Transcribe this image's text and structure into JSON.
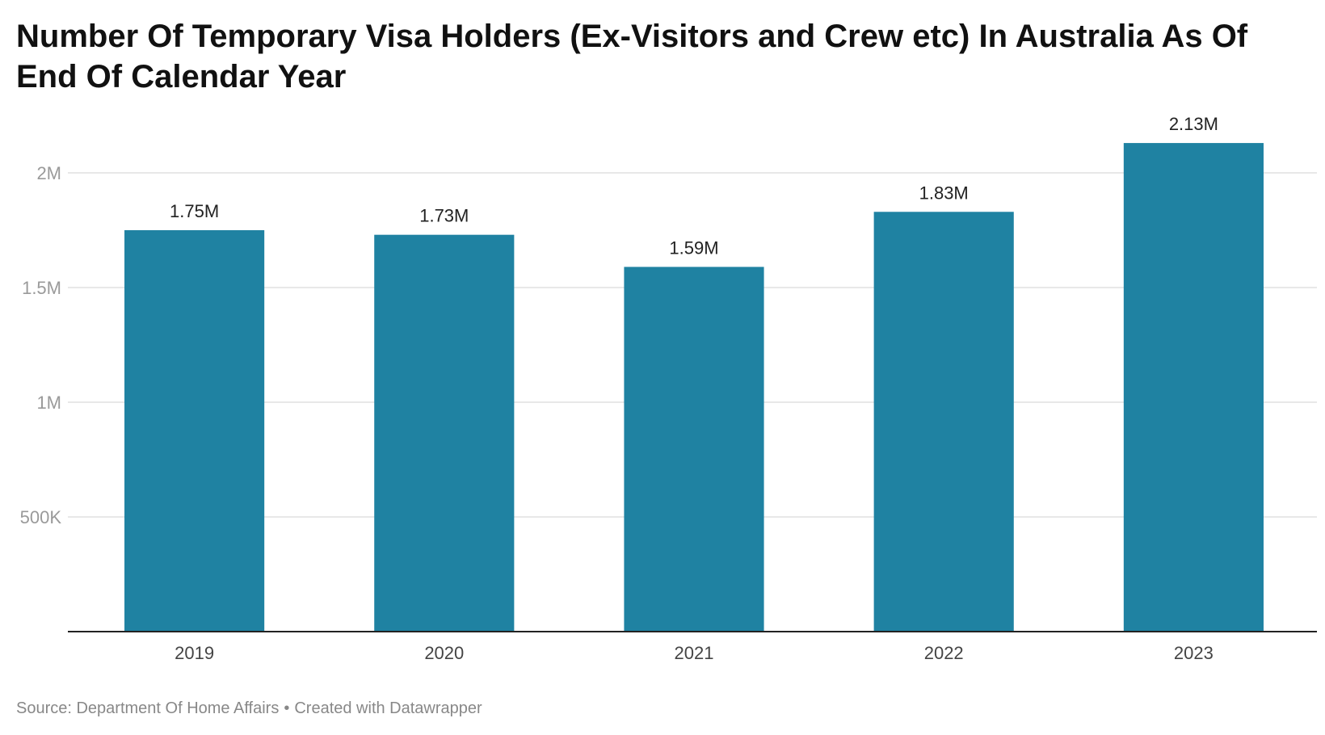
{
  "chart_data": {
    "type": "bar",
    "title": "Number Of Temporary Visa Holders (Ex-Visitors and Crew etc) In Australia As Of End Of Calendar Year",
    "categories": [
      "2019",
      "2020",
      "2021",
      "2022",
      "2023"
    ],
    "values": [
      1750000,
      1730000,
      1590000,
      1830000,
      2130000
    ],
    "data_labels": [
      "1.75M",
      "1.73M",
      "1.59M",
      "1.83M",
      "2.13M"
    ],
    "yticks": [
      {
        "value": 500000,
        "label": "500K"
      },
      {
        "value": 1000000,
        "label": "1M"
      },
      {
        "value": 1500000,
        "label": "1.5M"
      },
      {
        "value": 2000000,
        "label": "2M"
      }
    ],
    "ylim": [
      0,
      2250000
    ],
    "grid": true,
    "bar_color": "#1f82a2",
    "xlabel": "",
    "ylabel": ""
  },
  "footer": {
    "source": "Source: Department Of Home Affairs",
    "separator": "•",
    "credit": "Created with Datawrapper"
  }
}
